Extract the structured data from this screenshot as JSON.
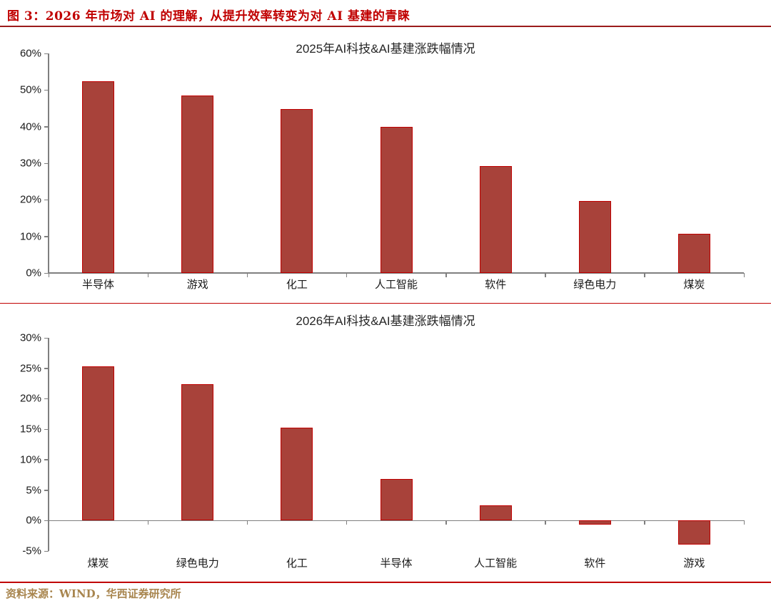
{
  "header": {
    "figure_title": "图 3：2026 年市场对 AI 的理解，从提升效率转变为对 AI 基建的青睐"
  },
  "source": {
    "text": "资料来源：WIND，华西证券研究所"
  },
  "colors": {
    "figure_title": "#c00000",
    "bar_fill": "#a8423a",
    "bar_border": "#c00000",
    "axis": "#7f7f7f",
    "source_text": "#a8854e"
  },
  "chart_data": [
    {
      "type": "bar",
      "title": "2025年AI科技&AI基建涨跌幅情况",
      "categories": [
        "半导体",
        "游戏",
        "化工",
        "人工智能",
        "软件",
        "绿色电力",
        "煤炭"
      ],
      "values": [
        52.5,
        48.5,
        44.8,
        39.9,
        29.2,
        19.7,
        10.7
      ],
      "unit": "%",
      "xlabel": "",
      "ylabel": "",
      "ylim": [
        0,
        60
      ],
      "ytick_step": 10,
      "grid": false,
      "legend": "none"
    },
    {
      "type": "bar",
      "title": "2026年AI科技&AI基建涨跌幅情况",
      "categories": [
        "煤炭",
        "绿色电力",
        "化工",
        "半导体",
        "人工智能",
        "软件",
        "游戏"
      ],
      "values": [
        25.3,
        22.4,
        15.2,
        6.8,
        2.5,
        -0.7,
        -3.9
      ],
      "unit": "%",
      "xlabel": "",
      "ylabel": "",
      "ylim": [
        -5,
        30
      ],
      "ytick_step": 5,
      "grid": false,
      "legend": "none"
    }
  ]
}
